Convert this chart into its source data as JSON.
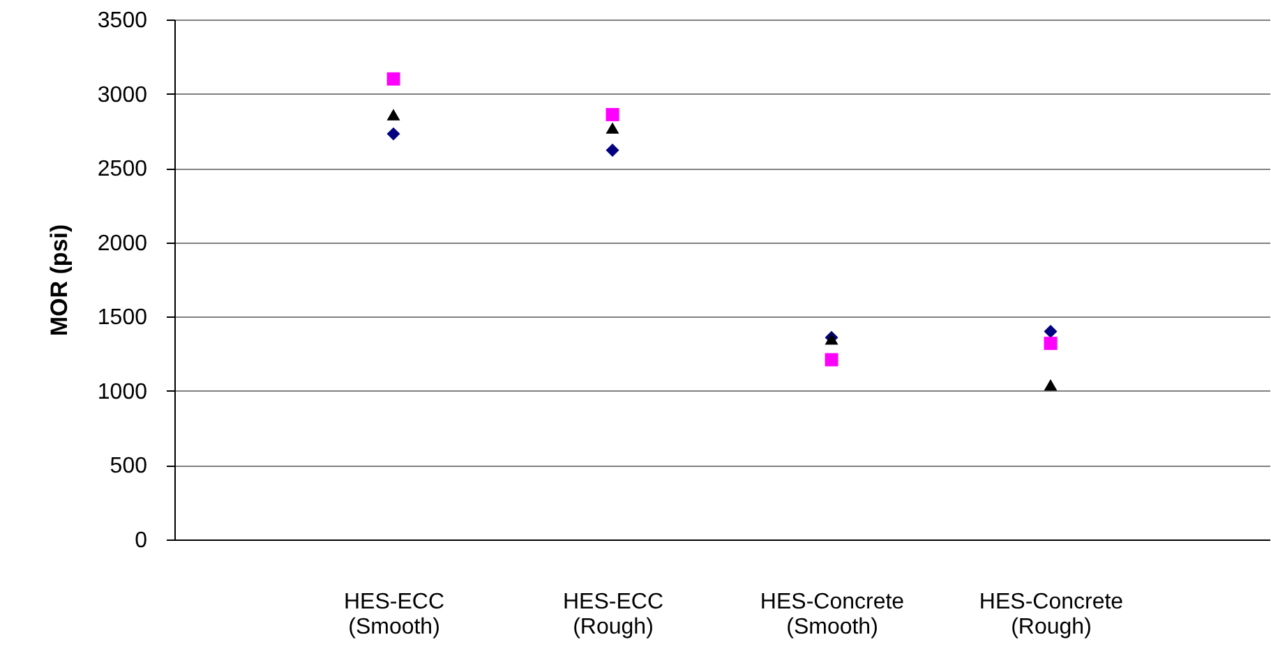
{
  "chart_data": {
    "type": "scatter",
    "ylabel": "MOR (psi)",
    "categories": [
      "HES-ECC\n(Smooth)",
      "HES-ECC\n(Rough)",
      "HES-Concrete\n(Smooth)",
      "HES-Concrete\n(Rough)"
    ],
    "series": [
      {
        "color": "#000080",
        "marker": "diamond",
        "values": [
          2730,
          2620,
          1360,
          1400
        ]
      },
      {
        "color": "#ff00ff",
        "marker": "square",
        "values": [
          3100,
          2860,
          1210,
          1320
        ]
      },
      {
        "color": "#000000",
        "marker": "triangle",
        "values": [
          2860,
          2770,
          1350,
          1040
        ]
      }
    ],
    "ylim": [
      0,
      3500
    ],
    "yticks": [
      0,
      500,
      1000,
      1500,
      2000,
      2500,
      3000,
      3500
    ],
    "grid": "y"
  }
}
